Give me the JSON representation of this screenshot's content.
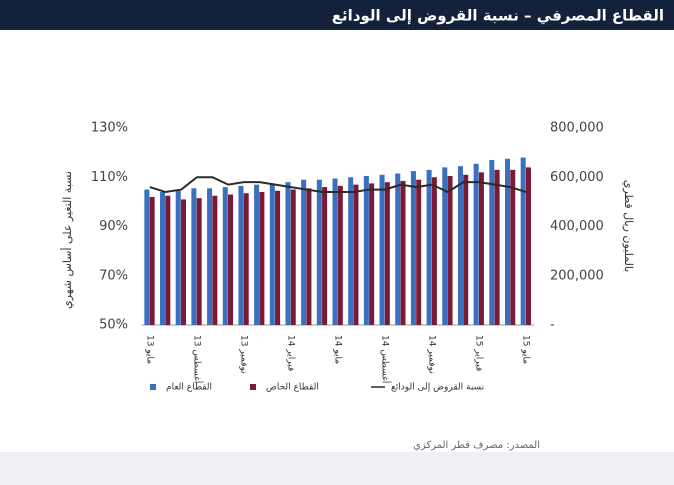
{
  "chart_data": {
    "type": "bar-line",
    "title": "القطاع المصرفي – نسبة القروض إلى الودائع",
    "y_label": "نسبة التغير على أساس شهري",
    "y2_label": "بالمليون ريال قطري",
    "source": "المصدر: مصرف قطر المركزي",
    "categories": [
      "مايو 13",
      null,
      null,
      "أغسطس 13",
      null,
      null,
      "نوفمبر 13",
      null,
      null,
      "فبراير 14",
      null,
      null,
      "مايو 14",
      null,
      null,
      "أغسطس 14",
      null,
      null,
      "نوفمبر 14",
      null,
      null,
      "فبراير 15",
      null,
      null,
      "مايو 15"
    ],
    "ylim": [
      50,
      130
    ],
    "yticks": [
      {
        "value": 50,
        "label": "50%"
      },
      {
        "value": 70,
        "label": "70%"
      },
      {
        "value": 90,
        "label": "90%"
      },
      {
        "value": 110,
        "label": "110%"
      },
      {
        "value": 130,
        "label": "130%"
      }
    ],
    "y2lim": [
      0,
      800000
    ],
    "y2ticks": [
      {
        "value": 0,
        "label": "-"
      },
      {
        "value": 200000,
        "label": "200,000"
      },
      {
        "value": 400000,
        "label": "400,000"
      },
      {
        "value": 600000,
        "label": "600,000"
      },
      {
        "value": 800000,
        "label": "800,000"
      }
    ],
    "series": [
      {
        "name": "القطاع العام",
        "color": "#3b6fc0",
        "axis": "y2",
        "kind": "bar",
        "values": [
          550000,
          540000,
          545000,
          555000,
          555000,
          560000,
          565000,
          570000,
          575000,
          580000,
          590000,
          590000,
          595000,
          600000,
          605000,
          610000,
          615000,
          625000,
          630000,
          640000,
          645000,
          655000,
          670000,
          675000,
          680000
        ]
      },
      {
        "name": "القطاع الخاص",
        "color": "#7b1a35",
        "axis": "y2",
        "kind": "bar",
        "values": [
          520000,
          525000,
          510000,
          515000,
          525000,
          530000,
          535000,
          540000,
          545000,
          550000,
          555000,
          560000,
          565000,
          570000,
          575000,
          580000,
          585000,
          590000,
          600000,
          605000,
          610000,
          620000,
          630000,
          630000,
          640000
        ]
      },
      {
        "name": "نسبة القروض إلى الودائع",
        "color": "#2b2b2b",
        "axis": "y",
        "kind": "line",
        "values": [
          106,
          104,
          105,
          110,
          110,
          107,
          108,
          108,
          107,
          106,
          105,
          104,
          104,
          104,
          105,
          105,
          107,
          106,
          107,
          104,
          108,
          108,
          107,
          106,
          104
        ]
      }
    ]
  }
}
